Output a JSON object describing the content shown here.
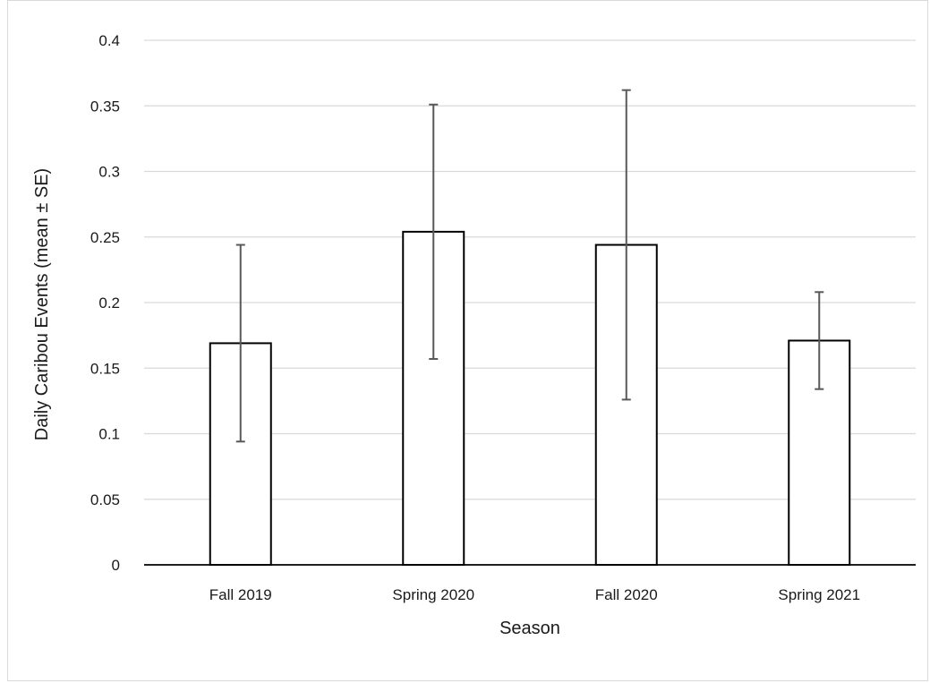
{
  "chart_data": {
    "type": "bar",
    "title": "",
    "xlabel": "Season",
    "ylabel": "Daily Caribou Events (mean ± SE)",
    "categories": [
      "Fall 2019",
      "Spring 2020",
      "Fall 2020",
      "Spring 2021"
    ],
    "values": [
      0.169,
      0.254,
      0.244,
      0.171
    ],
    "error_upper": [
      0.244,
      0.351,
      0.362,
      0.208
    ],
    "error_lower": [
      0.094,
      0.157,
      0.126,
      0.134
    ],
    "ylim": [
      0,
      0.4
    ],
    "yticks": [
      "0",
      "0.05",
      "0.1",
      "0.15",
      "0.2",
      "0.25",
      "0.3",
      "0.35",
      "0.4"
    ],
    "ytick_values": [
      0,
      0.05,
      0.1,
      0.15,
      0.2,
      0.25,
      0.3,
      0.35,
      0.4
    ],
    "grid": true,
    "legend": "none",
    "colors": {
      "bar_fill": "#ffffff",
      "bar_stroke": "#000000",
      "gridline": "#d9d9d9",
      "error_bar": "#595959",
      "axis": "#000000"
    }
  }
}
